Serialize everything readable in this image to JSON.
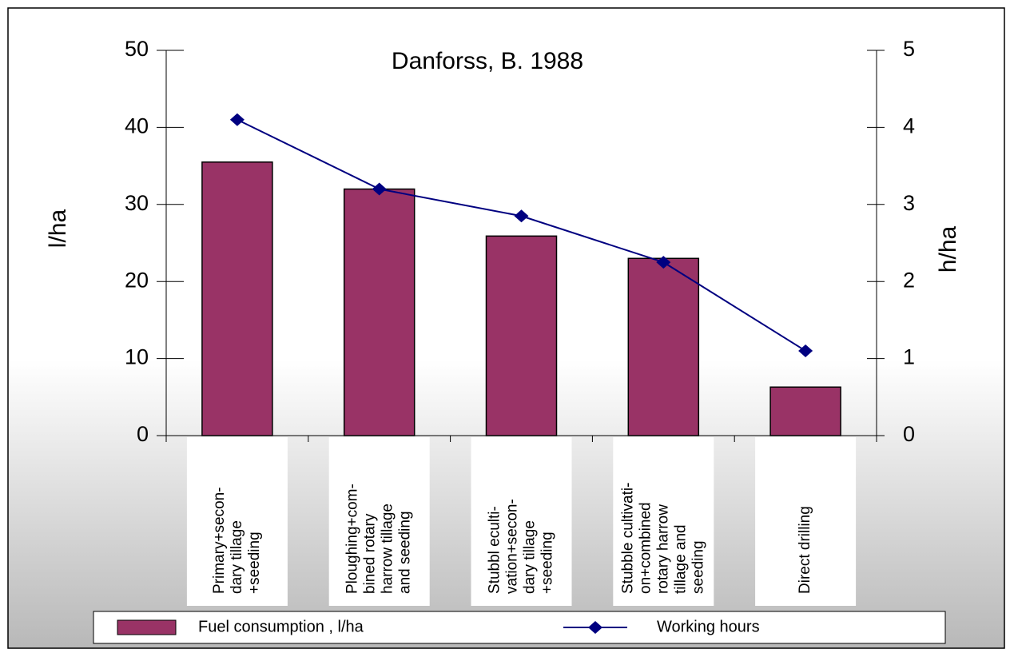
{
  "chart_data": {
    "type": "bar_line",
    "title": "Danforss, B. 1988",
    "y_label": "l/ha",
    "y2_label": "h/ha",
    "categories": [
      "Primary+secon-\ndary tillage\n+seeding",
      "Ploughing+com-\nbined rotary\nharrow tillage\nand seeding",
      "Stubbl eculti-\nvation+secon-\ndary tillage\n+seeding",
      "Stubble cultivati-\non+combined\nrotary harrow\ntillage and\nseeding",
      "Direct drilling"
    ],
    "series": [
      {
        "name": "Fuel consumption , l/ha",
        "color": "#993366",
        "type": "bar",
        "values": [
          35.5,
          32,
          25.9,
          23,
          6.3
        ]
      },
      {
        "name": "Working hours",
        "color": "#000080",
        "type": "line",
        "axis": "y2",
        "values": [
          4.1,
          3.2,
          2.85,
          2.25,
          1.1
        ]
      }
    ],
    "ylim": [
      0,
      50
    ],
    "yticks": [
      0,
      10,
      20,
      30,
      40,
      50
    ],
    "y2lim": [
      0,
      5
    ],
    "y2ticks": [
      0,
      1,
      2,
      3,
      4,
      5
    ]
  }
}
